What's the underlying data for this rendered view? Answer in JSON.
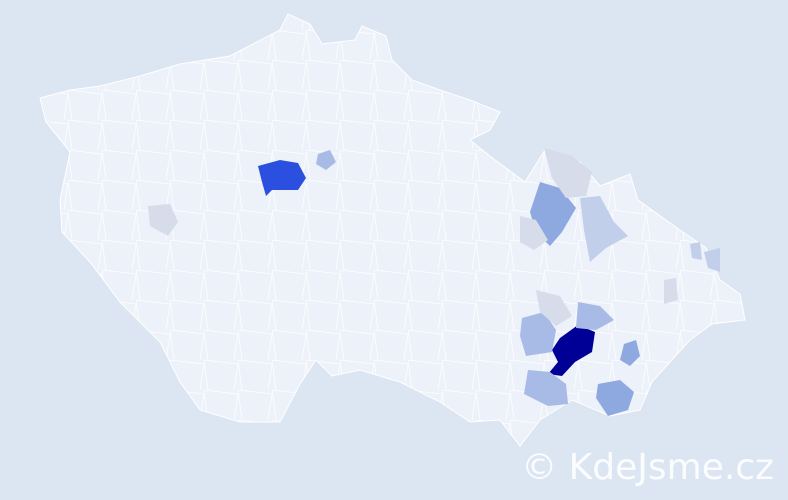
{
  "map": {
    "background": "#dce5f2",
    "base_fill": "#edf1f9",
    "border_color": "#ffffff",
    "highlighted_regions": [
      {
        "level": "highest",
        "color": "#000096"
      },
      {
        "level": "high",
        "color": "#2b50e0"
      },
      {
        "level": "medium",
        "color": "#8ea8e0"
      },
      {
        "level": "medium",
        "color": "#8ea8e0"
      },
      {
        "level": "medium",
        "color": "#8ea8e0"
      },
      {
        "level": "low",
        "color": "#a8bbe6"
      },
      {
        "level": "low",
        "color": "#a8bbe6"
      },
      {
        "level": "low",
        "color": "#a8bbe6"
      },
      {
        "level": "low",
        "color": "#a8bbe6"
      },
      {
        "level": "lowest",
        "color": "#c2cfea"
      },
      {
        "level": "lowest",
        "color": "#c2cfea"
      },
      {
        "level": "minimal",
        "color": "#d6dce9"
      },
      {
        "level": "minimal",
        "color": "#d6dce9"
      },
      {
        "level": "minimal",
        "color": "#d6dce9"
      },
      {
        "level": "minimal",
        "color": "#d6dce9"
      }
    ]
  },
  "watermark": "© KdeJsme.cz"
}
